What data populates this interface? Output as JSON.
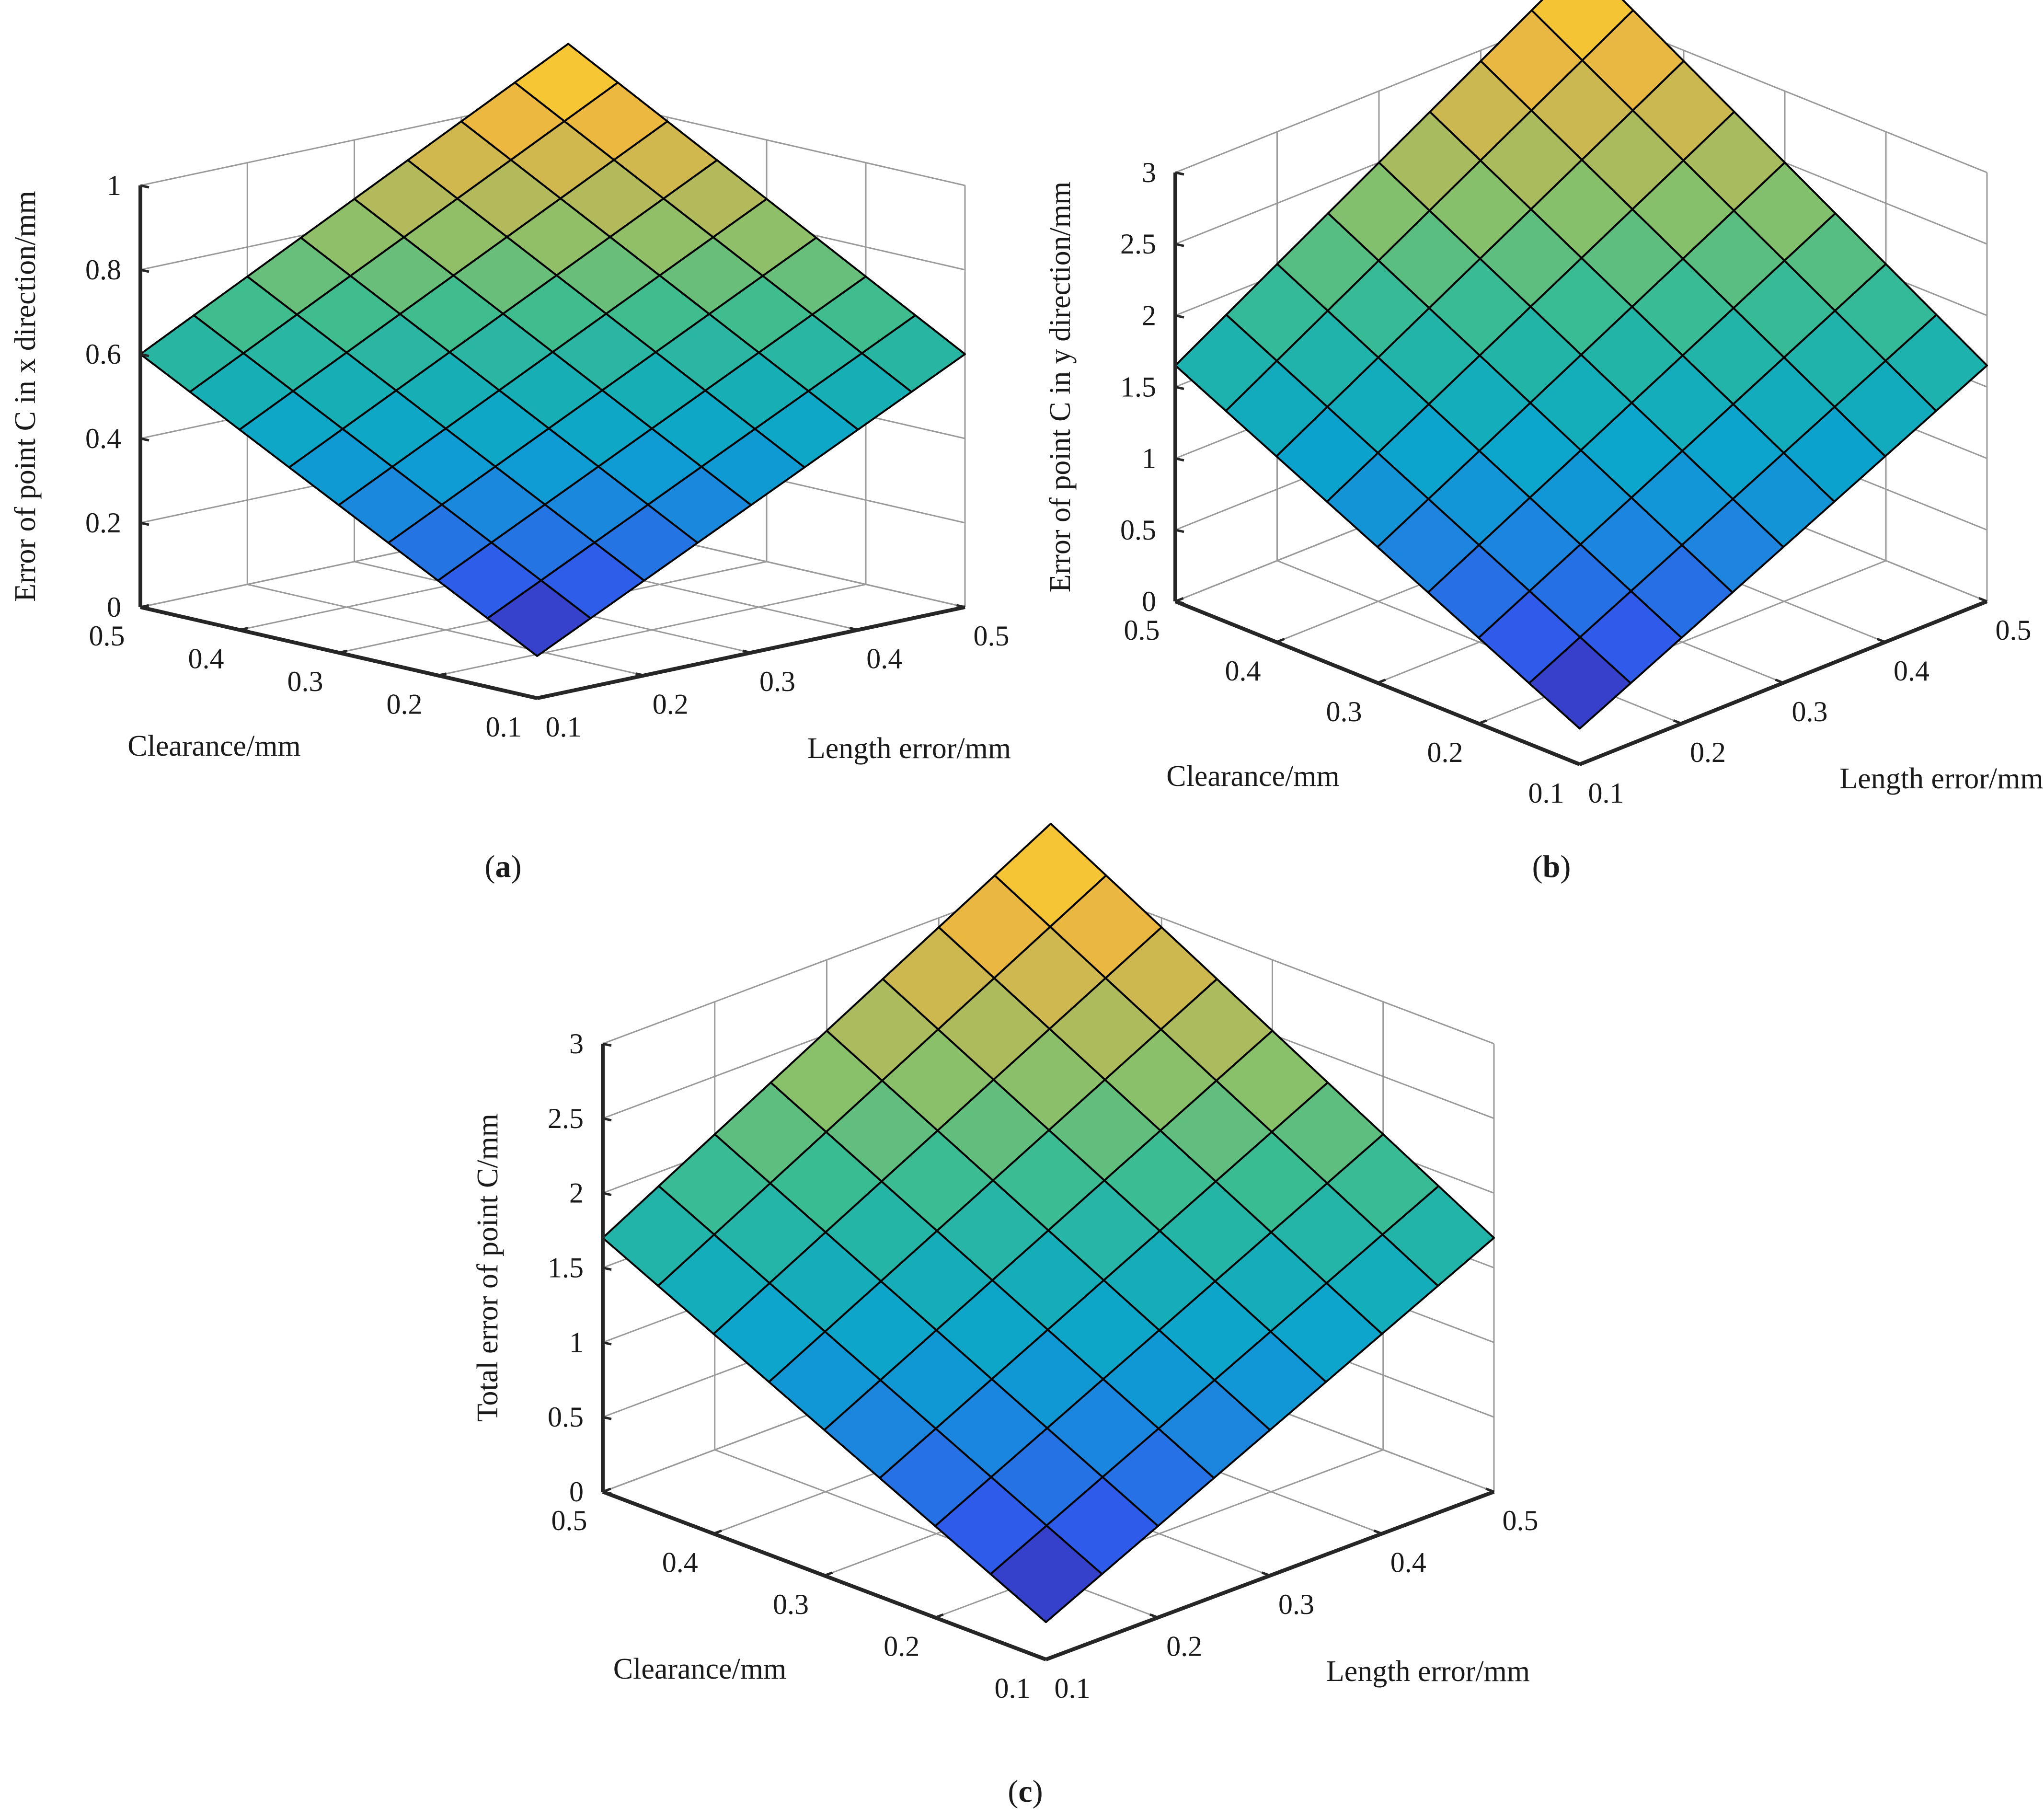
{
  "chart_data": [
    {
      "id": "a",
      "type": "surface",
      "panel_label": "(a)",
      "panel_letter": "a",
      "xlabel": "Clearance/mm",
      "ylabel": "Length error/mm",
      "zlabel": "Error of point C in x direction/mm",
      "x_ticks": [
        "0.1",
        "0.2",
        "0.3",
        "0.4",
        "0.5"
      ],
      "y_ticks": [
        "0.1",
        "0.2",
        "0.3",
        "0.4",
        "0.5"
      ],
      "z_ticks": [
        "0",
        "0.2",
        "0.4",
        "0.6",
        "0.8",
        "1"
      ],
      "xlim": [
        0.1,
        0.5
      ],
      "ylim": [
        0.1,
        0.5
      ],
      "zlim": [
        0,
        1
      ],
      "grid": true,
      "surface": {
        "x_range": [
          0.1,
          0.5
        ],
        "y_range": [
          0.1,
          0.5
        ],
        "cells": 8,
        "z_at_min_corner": 0.1,
        "z_at_max_corner": 1.12,
        "z_at_x_max_y_min": 0.6,
        "z_at_x_min_y_max": 0.6
      }
    },
    {
      "id": "b",
      "type": "surface",
      "panel_label": "(b)",
      "panel_letter": "b",
      "xlabel": "Clearance/mm",
      "ylabel": "Length error/mm",
      "zlabel": "Error of point C  in y direction/mm",
      "x_ticks": [
        "0.1",
        "0.2",
        "0.3",
        "0.4",
        "0.5"
      ],
      "y_ticks": [
        "0.1",
        "0.2",
        "0.3",
        "0.4",
        "0.5"
      ],
      "z_ticks": [
        "0",
        "0.5",
        "1",
        "1.5",
        "2",
        "2.5",
        "3"
      ],
      "xlim": [
        0.1,
        0.5
      ],
      "ylim": [
        0.1,
        0.5
      ],
      "zlim": [
        0,
        3
      ],
      "grid": true,
      "surface": {
        "x_range": [
          0.1,
          0.5
        ],
        "y_range": [
          0.1,
          0.5
        ],
        "cells": 8,
        "z_at_min_corner": 0.25,
        "z_at_max_corner": 3.35,
        "z_at_x_max_y_min": 1.65,
        "z_at_x_min_y_max": 1.65
      }
    },
    {
      "id": "c",
      "type": "surface",
      "panel_label": "(c)",
      "panel_letter": "c",
      "xlabel": "Clearance/mm",
      "ylabel": "Length error/mm",
      "zlabel": "Total error of point C/mm",
      "x_ticks": [
        "0.1",
        "0.2",
        "0.3",
        "0.4",
        "0.5"
      ],
      "y_ticks": [
        "0.1",
        "0.2",
        "0.3",
        "0.4",
        "0.5"
      ],
      "z_ticks": [
        "0",
        "0.5",
        "1",
        "1.5",
        "2",
        "2.5",
        "3"
      ],
      "xlim": [
        0.1,
        0.5
      ],
      "ylim": [
        0.1,
        0.5
      ],
      "zlim": [
        0,
        3
      ],
      "grid": true,
      "surface": {
        "x_range": [
          0.1,
          0.5
        ],
        "y_range": [
          0.1,
          0.5
        ],
        "cells": 8,
        "z_at_min_corner": 0.25,
        "z_at_max_corner": 3.35,
        "z_at_x_max_y_min": 1.7,
        "z_at_x_min_y_max": 1.7
      }
    }
  ],
  "colormap": [
    "#3e26a8",
    "#2f59ea",
    "#1e82e1",
    "#0aa2d0",
    "#18b1b2",
    "#3fbd8f",
    "#87c06b",
    "#c3b855",
    "#f3b83c",
    "#f9d82a"
  ]
}
